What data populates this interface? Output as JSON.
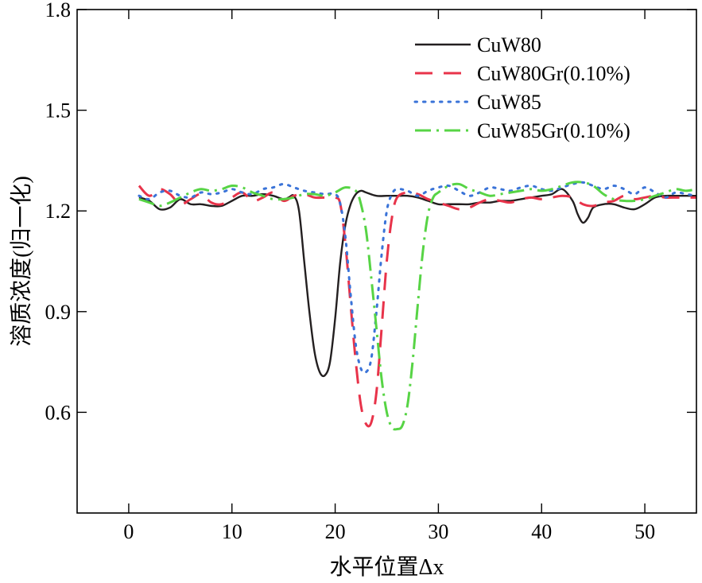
{
  "chart_data": {
    "type": "line",
    "xlabel": "水平位置Δx",
    "ylabel": "溶质浓度(归一化)",
    "xlim": [
      -5,
      55
    ],
    "ylim": [
      0.3,
      1.8
    ],
    "xticks": [
      0,
      10,
      20,
      30,
      40,
      50
    ],
    "yticks": [
      0.6,
      0.9,
      1.2,
      1.5,
      1.8
    ],
    "xtick_labels": [
      "0",
      "10",
      "20",
      "30",
      "40",
      "50"
    ],
    "ytick_labels": [
      "0.6",
      "0.9",
      "1.2",
      "1.5",
      "1.8"
    ],
    "grid": false,
    "legend_position": "top-right",
    "series": [
      {
        "name": "CuW80",
        "color": "#231f20",
        "dash": "solid",
        "x": [
          1,
          2,
          3,
          4,
          5,
          6,
          7,
          8,
          9,
          10,
          11,
          12,
          13,
          14,
          15,
          15.5,
          16,
          16.5,
          17,
          17.5,
          18,
          18.5,
          19,
          19.5,
          20,
          20.5,
          21,
          21.5,
          22,
          22.5,
          23,
          24,
          25,
          26,
          27,
          28,
          29,
          30,
          31,
          32,
          33,
          34,
          35,
          36,
          37,
          38,
          39,
          40,
          41,
          42,
          43,
          43.5,
          44,
          44.5,
          45,
          46,
          47,
          48,
          49,
          50,
          51,
          52,
          53,
          54,
          55
        ],
        "y": [
          1.24,
          1.23,
          1.205,
          1.21,
          1.235,
          1.22,
          1.22,
          1.215,
          1.215,
          1.23,
          1.245,
          1.245,
          1.25,
          1.245,
          1.235,
          1.24,
          1.245,
          1.2,
          1.05,
          0.9,
          0.78,
          0.72,
          0.71,
          0.75,
          0.88,
          1.05,
          1.16,
          1.22,
          1.25,
          1.26,
          1.255,
          1.245,
          1.245,
          1.245,
          1.245,
          1.24,
          1.23,
          1.22,
          1.22,
          1.22,
          1.22,
          1.225,
          1.225,
          1.23,
          1.23,
          1.235,
          1.24,
          1.245,
          1.25,
          1.265,
          1.23,
          1.19,
          1.165,
          1.18,
          1.21,
          1.22,
          1.22,
          1.21,
          1.205,
          1.22,
          1.24,
          1.245,
          1.245,
          1.245,
          1.245
        ]
      },
      {
        "name": "CuW80Gr(0.10%)",
        "color": "#e8334a",
        "dash": "long-dash",
        "x": [
          1,
          2,
          3,
          4,
          5,
          6,
          7,
          8,
          9,
          10,
          11,
          12,
          13,
          14,
          15,
          16,
          17,
          18,
          19,
          20,
          20.5,
          21,
          21.5,
          22,
          22.5,
          23,
          23.5,
          24,
          24.5,
          25,
          25.5,
          26,
          27,
          28,
          29,
          30,
          31,
          32,
          33,
          34,
          35,
          36,
          37,
          38,
          39,
          40,
          41,
          42,
          43,
          44,
          45,
          46,
          47,
          48,
          49,
          50,
          51,
          52,
          53,
          54,
          55
        ],
        "y": [
          1.275,
          1.245,
          1.265,
          1.25,
          1.22,
          1.235,
          1.25,
          1.225,
          1.22,
          1.24,
          1.255,
          1.23,
          1.24,
          1.255,
          1.23,
          1.245,
          1.25,
          1.24,
          1.24,
          1.24,
          1.22,
          1.1,
          0.92,
          0.75,
          0.62,
          0.565,
          0.57,
          0.66,
          0.85,
          1.05,
          1.18,
          1.24,
          1.255,
          1.25,
          1.235,
          1.225,
          1.215,
          1.205,
          1.21,
          1.225,
          1.235,
          1.23,
          1.225,
          1.235,
          1.24,
          1.235,
          1.24,
          1.245,
          1.24,
          1.22,
          1.215,
          1.225,
          1.23,
          1.245,
          1.235,
          1.24,
          1.245,
          1.24,
          1.24,
          1.24,
          1.24
        ]
      },
      {
        "name": "CuW85",
        "color": "#3a73d8",
        "dash": "dotted",
        "x": [
          1,
          2,
          3,
          4,
          5,
          6,
          7,
          8,
          9,
          10,
          11,
          12,
          13,
          14,
          15,
          16,
          17,
          18,
          19,
          20,
          20.5,
          21,
          21.5,
          22,
          22.5,
          23,
          23.5,
          24,
          24.5,
          25,
          25.5,
          26,
          27,
          28,
          29,
          30,
          31,
          32,
          33,
          34,
          35,
          36,
          37,
          38,
          39,
          40,
          41,
          42,
          43,
          44,
          45,
          46,
          47,
          48,
          49,
          50,
          51,
          52,
          53,
          54,
          55
        ],
        "y": [
          1.245,
          1.235,
          1.255,
          1.26,
          1.245,
          1.24,
          1.255,
          1.25,
          1.255,
          1.265,
          1.255,
          1.25,
          1.265,
          1.27,
          1.28,
          1.27,
          1.26,
          1.255,
          1.25,
          1.25,
          1.22,
          1.12,
          0.95,
          0.8,
          0.73,
          0.72,
          0.76,
          0.9,
          1.07,
          1.2,
          1.25,
          1.265,
          1.26,
          1.245,
          1.26,
          1.27,
          1.275,
          1.26,
          1.245,
          1.255,
          1.27,
          1.265,
          1.26,
          1.27,
          1.275,
          1.265,
          1.26,
          1.27,
          1.28,
          1.285,
          1.275,
          1.265,
          1.275,
          1.265,
          1.25,
          1.27,
          1.255,
          1.24,
          1.255,
          1.25,
          1.245
        ]
      },
      {
        "name": "CuW85Gr(0.10%)",
        "color": "#57d445",
        "dash": "dash-dot",
        "x": [
          1,
          2,
          3,
          4,
          5,
          6,
          7,
          8,
          9,
          10,
          11,
          12,
          13,
          14,
          15,
          16,
          17,
          18,
          19,
          20,
          21,
          22,
          22.5,
          23,
          23.5,
          24,
          24.5,
          25,
          25.5,
          26,
          26.5,
          27,
          27.5,
          28,
          28.5,
          29,
          29.5,
          30,
          31,
          32,
          33,
          34,
          35,
          36,
          37,
          38,
          39,
          40,
          41,
          42,
          43,
          44,
          45,
          46,
          47,
          48,
          49,
          50,
          51,
          52,
          53,
          54,
          55
        ],
        "y": [
          1.235,
          1.225,
          1.215,
          1.225,
          1.24,
          1.255,
          1.265,
          1.26,
          1.265,
          1.275,
          1.27,
          1.255,
          1.245,
          1.235,
          1.235,
          1.24,
          1.25,
          1.25,
          1.245,
          1.255,
          1.27,
          1.26,
          1.22,
          1.14,
          1.0,
          0.85,
          0.7,
          0.6,
          0.555,
          0.55,
          0.56,
          0.62,
          0.75,
          0.92,
          1.08,
          1.19,
          1.24,
          1.255,
          1.275,
          1.28,
          1.265,
          1.255,
          1.245,
          1.25,
          1.255,
          1.26,
          1.265,
          1.26,
          1.265,
          1.275,
          1.285,
          1.285,
          1.275,
          1.25,
          1.235,
          1.23,
          1.23,
          1.235,
          1.245,
          1.255,
          1.265,
          1.26,
          1.265
        ]
      }
    ]
  }
}
